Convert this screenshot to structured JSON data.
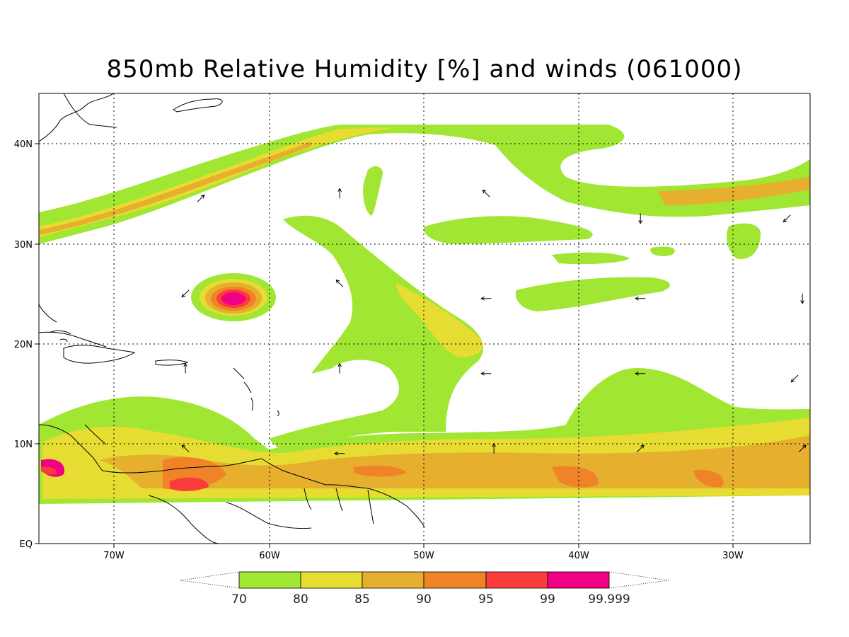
{
  "title": "850mb Relative Humidity [%] and winds (061000)",
  "axes": {
    "lon_labels": [
      "70W",
      "60W",
      "50W",
      "40W",
      "30W"
    ],
    "lat_labels": [
      "EQ",
      "10N",
      "20N",
      "30N",
      "40N"
    ],
    "lon_range": [
      -75,
      -25
    ],
    "lat_range": [
      0,
      45
    ],
    "grid": "dotted"
  },
  "colorbar": {
    "ticks": [
      "70",
      "80",
      "85",
      "90",
      "95",
      "99",
      "99.999"
    ],
    "colors": [
      "#a0e632",
      "#e6dc32",
      "#e6af2d",
      "#f08228",
      "#fa3c3c",
      "#f00082"
    ],
    "extends": "both"
  },
  "palette": {
    "rh70": "#a0e632",
    "rh80": "#e6dc32",
    "rh85": "#e6af2d",
    "rh90": "#f08228",
    "rh95": "#fa3c3c",
    "rh99": "#f00082",
    "coast": "#000000"
  },
  "wind_vectors": [
    {
      "lon": -64.5,
      "lat": 34.5,
      "dir": "NE"
    },
    {
      "lon": -55.5,
      "lat": 35.0,
      "dir": "N"
    },
    {
      "lon": -46.0,
      "lat": 35.0,
      "dir": "NW"
    },
    {
      "lon": -36.0,
      "lat": 32.5,
      "dir": "S"
    },
    {
      "lon": -26.5,
      "lat": 32.5,
      "dir": "SW"
    },
    {
      "lon": -65.5,
      "lat": 25.0,
      "dir": "SW"
    },
    {
      "lon": -55.5,
      "lat": 26.0,
      "dir": "NW"
    },
    {
      "lon": -46.0,
      "lat": 24.5,
      "dir": "W"
    },
    {
      "lon": -36.0,
      "lat": 24.5,
      "dir": "W"
    },
    {
      "lon": -25.5,
      "lat": 24.5,
      "dir": "S"
    },
    {
      "lon": -65.5,
      "lat": 17.5,
      "dir": "N"
    },
    {
      "lon": -55.5,
      "lat": 17.5,
      "dir": "N"
    },
    {
      "lon": -46.0,
      "lat": 17.0,
      "dir": "W"
    },
    {
      "lon": -36.0,
      "lat": 17.0,
      "dir": "W"
    },
    {
      "lon": -26.0,
      "lat": 16.5,
      "dir": "SW"
    },
    {
      "lon": -65.5,
      "lat": 9.5,
      "dir": "NW"
    },
    {
      "lon": -55.5,
      "lat": 9.0,
      "dir": "W"
    },
    {
      "lon": -45.5,
      "lat": 9.5,
      "dir": "N"
    },
    {
      "lon": -36.0,
      "lat": 9.5,
      "dir": "NE"
    },
    {
      "lon": -25.5,
      "lat": 9.5,
      "dir": "NE"
    }
  ]
}
